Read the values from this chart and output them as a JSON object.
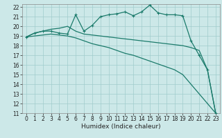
{
  "xlabel": "Humidex (Indice chaleur)",
  "bg_color": "#cce8e8",
  "grid_color": "#a0cccc",
  "line_color": "#1a7a6a",
  "xlim": [
    -0.5,
    23.5
  ],
  "ylim": [
    11,
    22.3
  ],
  "xticks": [
    0,
    1,
    2,
    3,
    4,
    5,
    6,
    7,
    8,
    9,
    10,
    11,
    12,
    13,
    14,
    15,
    16,
    17,
    18,
    19,
    20,
    21,
    22,
    23
  ],
  "yticks": [
    11,
    12,
    13,
    14,
    15,
    16,
    17,
    18,
    19,
    20,
    21,
    22
  ],
  "line1_x": [
    0,
    1,
    2,
    3,
    4,
    5,
    6,
    7,
    8,
    9,
    10,
    11,
    12,
    13,
    14,
    15,
    16,
    17,
    18,
    19,
    20,
    21,
    22,
    23
  ],
  "line1_y": [
    18.9,
    19.3,
    19.5,
    19.5,
    19.3,
    19.2,
    21.2,
    19.5,
    20.1,
    21.0,
    21.2,
    21.3,
    21.5,
    21.1,
    21.5,
    22.2,
    21.4,
    21.2,
    21.2,
    21.1,
    18.5,
    17.0,
    15.5,
    11.0
  ],
  "line2_x": [
    0,
    1,
    2,
    3,
    4,
    5,
    6,
    7,
    8,
    9,
    10,
    11,
    12,
    13,
    14,
    15,
    16,
    17,
    18,
    19,
    20,
    21,
    22,
    23
  ],
  "line2_y": [
    18.9,
    19.0,
    19.1,
    19.2,
    19.1,
    19.0,
    18.8,
    18.5,
    18.2,
    18.0,
    17.8,
    17.5,
    17.2,
    17.0,
    16.7,
    16.4,
    16.1,
    15.8,
    15.5,
    15.0,
    14.0,
    13.0,
    12.0,
    11.0
  ],
  "line3_x": [
    0,
    1,
    2,
    3,
    4,
    5,
    6,
    7,
    8,
    9,
    10,
    11,
    12,
    13,
    14,
    15,
    16,
    17,
    18,
    19,
    20,
    21,
    22,
    23
  ],
  "line3_y": [
    18.9,
    19.3,
    19.5,
    19.7,
    19.8,
    20.0,
    19.5,
    19.2,
    19.1,
    19.0,
    18.9,
    18.8,
    18.7,
    18.6,
    18.5,
    18.4,
    18.3,
    18.2,
    18.1,
    18.0,
    17.8,
    17.5,
    15.5,
    11.0
  ],
  "tick_fontsize": 5.5,
  "label_fontsize": 6.5
}
